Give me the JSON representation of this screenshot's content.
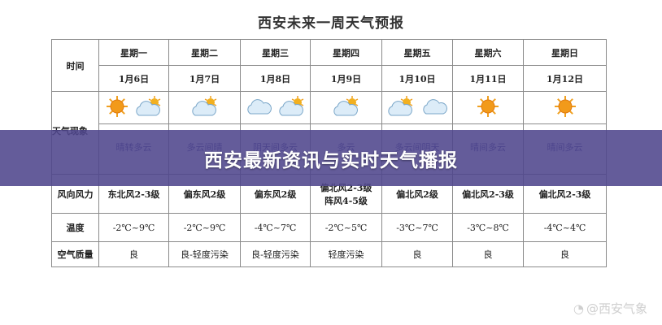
{
  "title": "西安未来一周天气预报",
  "row_labels": {
    "time": "时间",
    "weather": "天气现象",
    "wind": "风向风力",
    "temp": "温度",
    "air": "空气质量"
  },
  "days": [
    {
      "weekday": "星期一",
      "date": "1月6日",
      "icons": [
        "sun",
        "cloud-sun"
      ],
      "weather": "晴转多云",
      "wind": "东北风2-3级",
      "wind2": "",
      "temp": "-2℃~9℃",
      "air": "良"
    },
    {
      "weekday": "星期二",
      "date": "1月7日",
      "icons": [
        "cloud-sun"
      ],
      "weather": "多云间晴",
      "wind": "偏东风2级",
      "wind2": "",
      "temp": "-2℃~9℃",
      "air": "良-轻度污染"
    },
    {
      "weekday": "星期三",
      "date": "1月8日",
      "icons": [
        "cloud",
        "cloud-sun"
      ],
      "weather": "阴天间多云",
      "wind": "偏东风2级",
      "wind2": "",
      "temp": "-4℃~7℃",
      "air": "良-轻度污染"
    },
    {
      "weekday": "星期四",
      "date": "1月9日",
      "icons": [
        "cloud-sun"
      ],
      "weather": "多云",
      "wind": "偏北风2-3级",
      "wind2": "阵风4-5级",
      "temp": "-2℃~5℃",
      "air": "轻度污染"
    },
    {
      "weekday": "星期五",
      "date": "1月10日",
      "icons": [
        "cloud-sun",
        "cloud"
      ],
      "weather": "多云间阴天",
      "wind": "偏北风2级",
      "wind2": "",
      "temp": "-3℃~7℃",
      "air": "良"
    },
    {
      "weekday": "星期六",
      "date": "1月11日",
      "icons": [
        "sun"
      ],
      "weather": "晴间多云",
      "wind": "偏北风2-3级",
      "wind2": "",
      "temp": "-3℃~8℃",
      "air": "良"
    },
    {
      "weekday": "星期日",
      "date": "1月12日",
      "icons": [
        "sun"
      ],
      "weather": "晴间多云",
      "wind": "偏北风2-3级",
      "wind2": "",
      "temp": "-4℃~4℃",
      "air": "良"
    }
  ],
  "banner": "西安最新资讯与实时天气播报",
  "watermark": "@西安气象",
  "colors": {
    "banner": "#4e468c",
    "sun": "#f29a1a",
    "cloud": "#dcecf8"
  }
}
